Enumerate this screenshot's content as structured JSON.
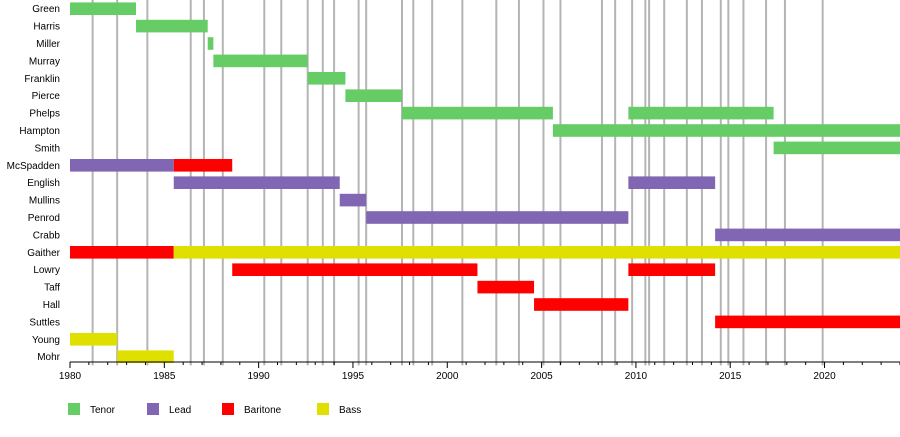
{
  "chart_data": {
    "type": "bar",
    "title": "",
    "xlabel": "",
    "ylabel": "",
    "xlim": [
      1980,
      2024
    ],
    "x_ticks": [
      "1980",
      "1985",
      "1990",
      "1995",
      "2000",
      "2005",
      "2010",
      "2015",
      "2020"
    ],
    "members": [
      "Green",
      "Harris",
      "Miller",
      "Murray",
      "Franklin",
      "Pierce",
      "Phelps",
      "Hampton",
      "Smith",
      "McSpadden",
      "English",
      "Mullins",
      "Penrod",
      "Crabb",
      "Gaither",
      "Lowry",
      "Taff",
      "Hall",
      "Suttles",
      "Young",
      "Mohr"
    ],
    "roles": [
      {
        "name": "Tenor",
        "color": "#66cc66"
      },
      {
        "name": "Lead",
        "color": "#8066b3"
      },
      {
        "name": "Baritone",
        "color": "#ff0000"
      },
      {
        "name": "Bass",
        "color": "#e0e000"
      }
    ],
    "events": [
      1981.2,
      1982.5,
      1984.1,
      1986.4,
      1987.1,
      1988.1,
      1990.3,
      1991.2,
      1992.6,
      1993.4,
      1994.0,
      1995.3,
      1995.7,
      1997.6,
      1998.2,
      1999.2,
      2000.8,
      2002.6,
      2003.8,
      2005.1,
      2006.0,
      2008.2,
      2008.9,
      2009.8,
      2010.5,
      2010.7,
      2011.5,
      2012.7,
      2013.5,
      2014.5,
      2014.9,
      2015.7,
      2016.9,
      2017.9,
      2019.9
    ],
    "bars": [
      {
        "member": "Green",
        "role": "Tenor",
        "start": 1980.0,
        "end": 1983.5
      },
      {
        "member": "Harris",
        "role": "Tenor",
        "start": 1983.5,
        "end": 1987.3
      },
      {
        "member": "Miller",
        "role": "Tenor",
        "start": 1987.3,
        "end": 1987.6
      },
      {
        "member": "Murray",
        "role": "Tenor",
        "start": 1987.6,
        "end": 1992.6
      },
      {
        "member": "Franklin",
        "role": "Tenor",
        "start": 1992.6,
        "end": 1994.6
      },
      {
        "member": "Pierce",
        "role": "Tenor",
        "start": 1994.6,
        "end": 1997.6
      },
      {
        "member": "Phelps",
        "role": "Tenor",
        "start": 1997.6,
        "end": 2005.6
      },
      {
        "member": "Phelps",
        "role": "Tenor",
        "start": 2009.6,
        "end": 2017.3
      },
      {
        "member": "Hampton",
        "role": "Tenor",
        "start": 2005.6,
        "end": 2024.0
      },
      {
        "member": "Smith",
        "role": "Tenor",
        "start": 2017.3,
        "end": 2024.0
      },
      {
        "member": "McSpadden",
        "role": "Lead",
        "start": 1980.0,
        "end": 1985.5
      },
      {
        "member": "McSpadden",
        "role": "Baritone",
        "start": 1985.5,
        "end": 1988.6
      },
      {
        "member": "English",
        "role": "Lead",
        "start": 1985.5,
        "end": 1994.3
      },
      {
        "member": "English",
        "role": "Lead",
        "start": 2009.6,
        "end": 2014.2
      },
      {
        "member": "Mullins",
        "role": "Lead",
        "start": 1994.3,
        "end": 1995.7
      },
      {
        "member": "Penrod",
        "role": "Lead",
        "start": 1995.7,
        "end": 2009.6
      },
      {
        "member": "Crabb",
        "role": "Lead",
        "start": 2014.2,
        "end": 2024.0
      },
      {
        "member": "Gaither",
        "role": "Baritone",
        "start": 1980.0,
        "end": 1985.5
      },
      {
        "member": "Gaither",
        "role": "Bass",
        "start": 1985.5,
        "end": 2024.0
      },
      {
        "member": "Lowry",
        "role": "Baritone",
        "start": 1988.6,
        "end": 2001.6
      },
      {
        "member": "Lowry",
        "role": "Baritone",
        "start": 2009.6,
        "end": 2014.2
      },
      {
        "member": "Taff",
        "role": "Baritone",
        "start": 2001.6,
        "end": 2004.6
      },
      {
        "member": "Hall",
        "role": "Baritone",
        "start": 2004.6,
        "end": 2009.6
      },
      {
        "member": "Suttles",
        "role": "Baritone",
        "start": 2014.2,
        "end": 2024.0
      },
      {
        "member": "Young",
        "role": "Bass",
        "start": 1980.0,
        "end": 1982.5
      },
      {
        "member": "Mohr",
        "role": "Bass",
        "start": 1982.5,
        "end": 1985.5
      }
    ]
  }
}
